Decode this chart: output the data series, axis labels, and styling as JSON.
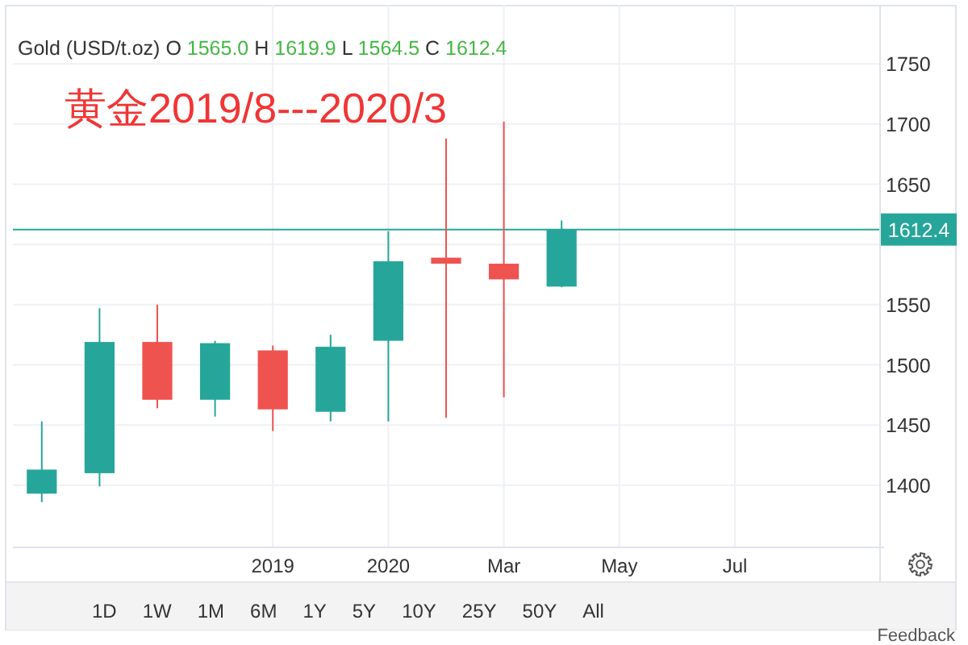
{
  "chart_data": {
    "type": "candlestick",
    "title": "黄金2019/8---2020/3",
    "subtitle": "Gold (USD/t.oz) O 1565.0 H 1619.9 L 1564.5 C 1612.4",
    "categories": [
      null,
      null,
      null,
      null,
      "2019",
      null,
      "2020",
      null,
      "Mar",
      null,
      "May",
      null,
      "Jul",
      null,
      null
    ],
    "ohlc": [
      [
        1393,
        1453,
        1386,
        1413
      ],
      [
        1410,
        1547,
        1399,
        1519
      ],
      [
        1519,
        1550,
        1464,
        1471
      ],
      [
        1471,
        1520,
        1457,
        1518
      ],
      [
        1512,
        1516,
        1445,
        1463
      ],
      [
        1461,
        1525,
        1453,
        1515
      ],
      [
        1520,
        1611,
        1453,
        1586
      ],
      [
        1589,
        1688,
        1456,
        1584
      ],
      [
        1584,
        1702,
        1473,
        1571
      ],
      [
        1565.0,
        1619.9,
        1564.5,
        1612.4
      ],
      null,
      null,
      null,
      null,
      null
    ],
    "colors": [
      "#26a69a",
      "#26a69a",
      "#ef5350",
      "#26a69a",
      "#ef5350",
      "#26a69a",
      "#26a69a",
      "#ef5350",
      "#ef5350",
      "#26a69a",
      null,
      null,
      null,
      null,
      null
    ],
    "ylim": [
      1349,
      1799
    ],
    "yticks": [
      1400,
      1450,
      1500,
      1550,
      {
        "value": 1600,
        "label": null
      },
      1650,
      1700,
      1750
    ],
    "grid": true,
    "ref_lines": [
      {
        "axis": "y",
        "value": 1612.4,
        "label": "1612.4",
        "color": "#26a69a"
      }
    ],
    "annotations": [
      "1D",
      "1W",
      "1M",
      "6M",
      "1Y",
      "5Y",
      "10Y",
      "25Y",
      "50Y",
      "All",
      "Feedback"
    ]
  }
}
